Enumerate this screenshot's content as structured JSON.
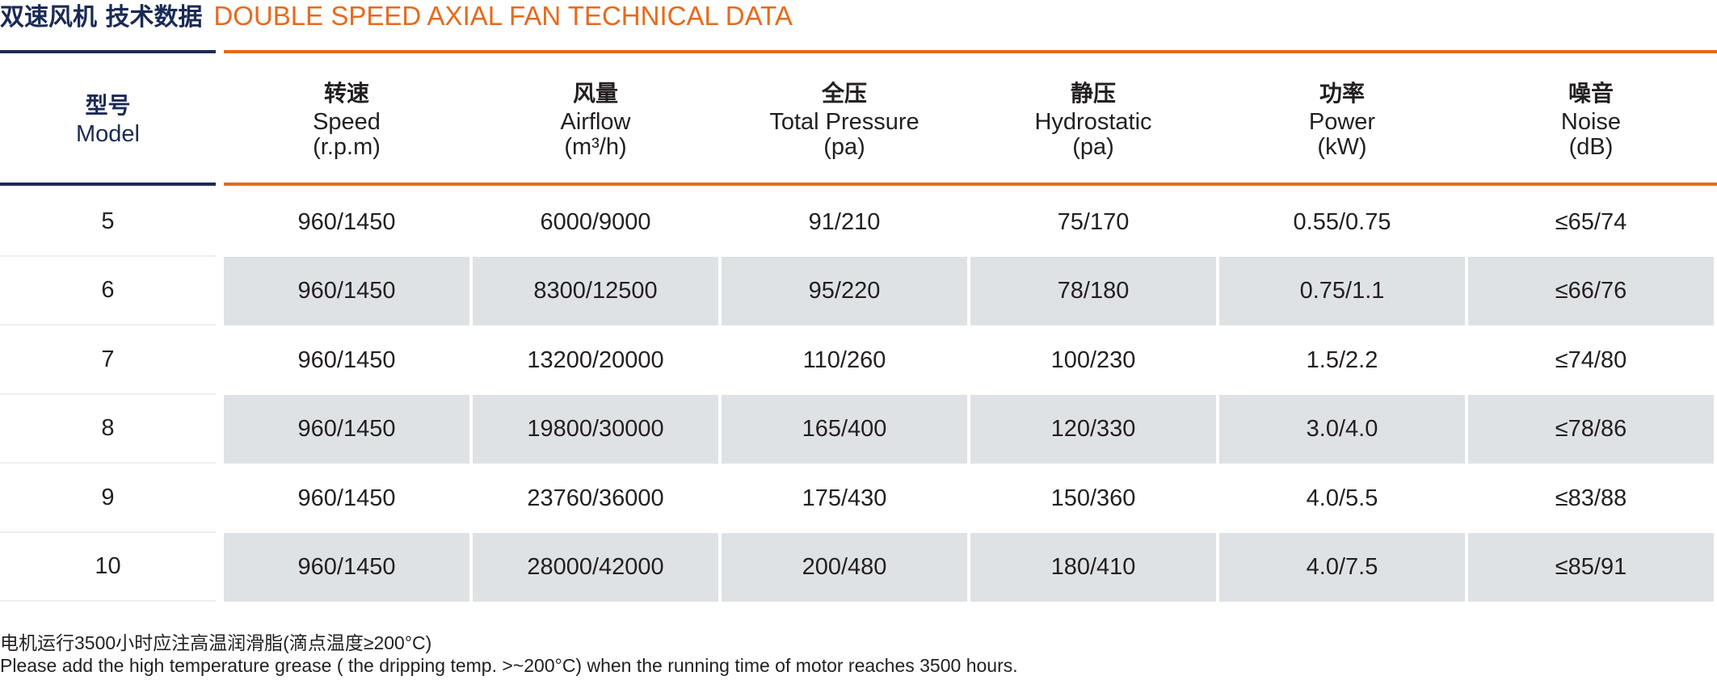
{
  "title": {
    "cn": "双速风机 技术数据",
    "en": "DOUBLE SPEED AXIAL FAN TECHNICAL DATA"
  },
  "colors": {
    "navy": "#1b2a55",
    "orange": "#e8691b",
    "row_gray": "#dfe2e5"
  },
  "header": {
    "model": {
      "cn": "型号",
      "en": "Model"
    },
    "columns": [
      {
        "cn": "转速",
        "en": "Speed",
        "unit": "(r.p.m)"
      },
      {
        "cn": "风量",
        "en": "Airflow",
        "unit": "(m³/h)"
      },
      {
        "cn": "全压",
        "en": "Total Pressure",
        "unit": "(pa)"
      },
      {
        "cn": "静压",
        "en": "Hydrostatic",
        "unit": "(pa)"
      },
      {
        "cn": "功率",
        "en": "Power",
        "unit": "(kW)"
      },
      {
        "cn": "噪音",
        "en": "Noise",
        "unit": "(dB)"
      }
    ]
  },
  "rows": [
    {
      "model": "5",
      "cells": [
        "960/1450",
        "6000/9000",
        "91/210",
        "75/170",
        "0.55/0.75",
        "≤65/74"
      ]
    },
    {
      "model": "6",
      "cells": [
        "960/1450",
        "8300/12500",
        "95/220",
        "78/180",
        "0.75/1.1",
        "≤66/76"
      ]
    },
    {
      "model": "7",
      "cells": [
        "960/1450",
        "13200/20000",
        "110/260",
        "100/230",
        "1.5/2.2",
        "≤74/80"
      ]
    },
    {
      "model": "8",
      "cells": [
        "960/1450",
        "19800/30000",
        "165/400",
        "120/330",
        "3.0/4.0",
        "≤78/86"
      ]
    },
    {
      "model": "9",
      "cells": [
        "960/1450",
        "23760/36000",
        "175/430",
        "150/360",
        "4.0/5.5",
        "≤83/88"
      ]
    },
    {
      "model": "10",
      "cells": [
        "960/1450",
        "28000/42000",
        "200/480",
        "180/410",
        "4.0/7.5",
        "≤85/91"
      ]
    }
  ],
  "notes": {
    "cn": "电机运行3500小时应注高温润滑脂(滴点温度≥200°C)",
    "en": "Please add the high temperature grease ( the dripping temp. >~200°C) when the running time of motor reaches 3500 hours."
  }
}
